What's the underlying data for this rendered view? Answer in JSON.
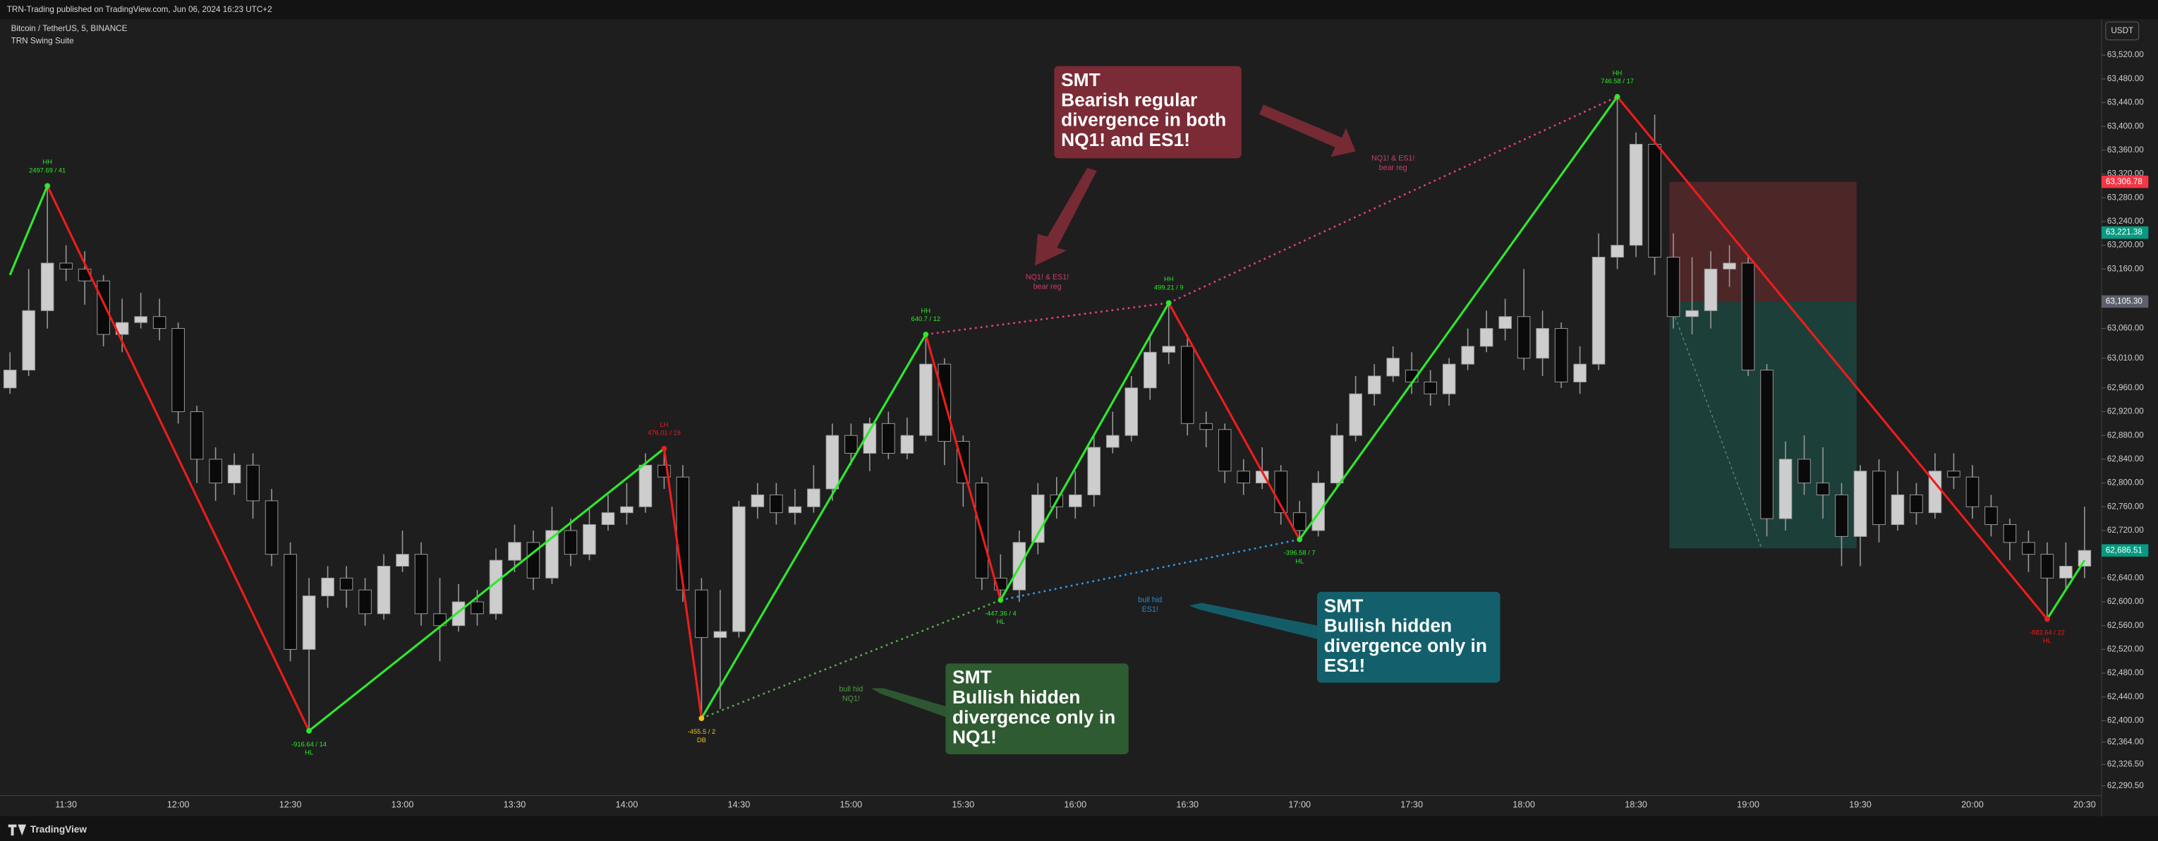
{
  "header": {
    "publisher": "TRN-Trading published on TradingView.com, Jun 06, 2024 16:23 UTC+2",
    "symbol": "Bitcoin / TetherUS, 5, BINANCE",
    "indicator": "TRN Swing Suite",
    "currency": "USDT",
    "brand": "TradingView"
  },
  "chart_data": {
    "type": "candlestick",
    "categories": [
      null,
      null,
      null,
      "11:30",
      null,
      null,
      null,
      null,
      null,
      "12:00",
      null,
      null,
      null,
      null,
      null,
      "12:30",
      null,
      null,
      null,
      null,
      null,
      "13:00",
      null,
      null,
      null,
      null,
      null,
      "13:30",
      null,
      null,
      null,
      null,
      null,
      "14:00",
      null,
      null,
      null,
      null,
      null,
      "14:30",
      null,
      null,
      null,
      null,
      null,
      "15:00",
      null,
      null,
      null,
      null,
      null,
      "15:30",
      null,
      null,
      null,
      null,
      null,
      "16:00",
      null,
      null,
      null,
      null,
      null,
      "16:30",
      null,
      null,
      null,
      null,
      null,
      "17:00",
      null,
      null,
      null,
      null,
      null,
      "17:30",
      null,
      null,
      null,
      null,
      null,
      "18:00",
      null,
      null,
      null,
      null,
      null,
      "18:30",
      null,
      null,
      null,
      null,
      null,
      "19:00",
      null,
      null,
      null,
      null,
      null,
      "19:30",
      null,
      null,
      null,
      null,
      null,
      "20:00",
      null,
      null,
      null,
      null,
      null,
      "20:30"
    ],
    "open": [
      62960,
      62990,
      63090,
      63170,
      63160,
      63140,
      63050,
      63070,
      63080,
      63060,
      62920,
      62840,
      62800,
      62830,
      62770,
      62680,
      62520,
      62610,
      62640,
      62620,
      62580,
      62660,
      62680,
      62580,
      62560,
      62600,
      62580,
      62670,
      62700,
      62640,
      62720,
      62680,
      62730,
      62750,
      62760,
      62830,
      62810,
      62620,
      62540,
      62550,
      62760,
      62780,
      62750,
      62760,
      62790,
      62880,
      62850,
      62900,
      62850,
      62880,
      63000,
      62870,
      62800,
      62640,
      62620,
      62700,
      62780,
      62760,
      62780,
      62860,
      62880,
      62960,
      63020,
      63030,
      62900,
      62890,
      62820,
      62800,
      62820,
      62750,
      62720,
      62800,
      62880,
      62950,
      62980,
      62990,
      62970,
      62950,
      63000,
      63030,
      63060,
      63080,
      63010,
      63060,
      62970,
      63000,
      63180,
      63200,
      63370,
      63180,
      63080,
      63090,
      63160,
      63170,
      62990,
      62740,
      62840,
      62800,
      62780,
      62710,
      62820,
      62730,
      62780,
      62750,
      62820,
      62810,
      62760,
      62730,
      62700,
      62680,
      62640,
      62660
    ],
    "high": [
      63020,
      63160,
      63300,
      63200,
      63190,
      63150,
      63110,
      63120,
      63110,
      63070,
      62930,
      62860,
      62850,
      62850,
      62790,
      62700,
      62640,
      62660,
      62660,
      62640,
      62680,
      62720,
      62700,
      62640,
      62630,
      62620,
      62690,
      62730,
      62720,
      62760,
      62740,
      62760,
      62780,
      62800,
      62850,
      62858,
      62830,
      62640,
      62620,
      62770,
      62800,
      62800,
      62790,
      62830,
      62900,
      62900,
      62910,
      62920,
      62910,
      63050,
      63010,
      62880,
      62810,
      62680,
      62720,
      62800,
      62810,
      62820,
      62880,
      62920,
      62980,
      63050,
      63103,
      63050,
      62920,
      62900,
      62840,
      62860,
      62830,
      62770,
      62820,
      62900,
      62980,
      63000,
      63030,
      63020,
      62990,
      63010,
      63060,
      63090,
      63110,
      63160,
      63090,
      63070,
      63030,
      63220,
      63450,
      63390,
      63420,
      63220,
      63180,
      63190,
      63200,
      63184,
      63000,
      62870,
      62880,
      62860,
      62800,
      62830,
      62840,
      62820,
      62800,
      62850,
      62850,
      62830,
      62780,
      62740,
      62720,
      62700,
      62700,
      62760
    ],
    "low": [
      62950,
      62980,
      63060,
      63140,
      63100,
      63030,
      63020,
      63060,
      63040,
      62900,
      62800,
      62770,
      62780,
      62740,
      62660,
      62500,
      62383,
      62590,
      62590,
      62560,
      62570,
      62650,
      62560,
      62500,
      62550,
      62560,
      62570,
      62650,
      62620,
      62630,
      62660,
      62670,
      62720,
      62730,
      62750,
      62790,
      62600,
      62404,
      62420,
      62540,
      62740,
      62730,
      62730,
      62750,
      62770,
      62830,
      62820,
      62840,
      62840,
      62870,
      62830,
      62760,
      62620,
      62603,
      62600,
      62680,
      62740,
      62740,
      62760,
      62850,
      62870,
      62940,
      63000,
      62880,
      62860,
      62800,
      62780,
      62790,
      62730,
      62705,
      62710,
      62790,
      62870,
      62930,
      62970,
      62950,
      62930,
      62930,
      62990,
      63020,
      63040,
      62990,
      62980,
      62960,
      62950,
      62990,
      63160,
      63180,
      63150,
      63060,
      63050,
      63060,
      63130,
      62980,
      62710,
      62720,
      62780,
      62740,
      62660,
      62660,
      62700,
      62720,
      62730,
      62740,
      62790,
      62740,
      62710,
      62670,
      62650,
      62571,
      62620,
      62640
    ],
    "close": [
      62990,
      63090,
      63170,
      63160,
      63140,
      63050,
      63070,
      63080,
      63060,
      62920,
      62840,
      62800,
      62830,
      62770,
      62680,
      62520,
      62610,
      62640,
      62620,
      62580,
      62660,
      62680,
      62580,
      62560,
      62600,
      62580,
      62670,
      62700,
      62640,
      62720,
      62680,
      62730,
      62750,
      62760,
      62830,
      62810,
      62620,
      62540,
      62550,
      62760,
      62780,
      62750,
      62760,
      62790,
      62880,
      62850,
      62900,
      62850,
      62880,
      63000,
      62870,
      62800,
      62640,
      62620,
      62700,
      62780,
      62760,
      62780,
      62860,
      62880,
      62960,
      63020,
      63030,
      62900,
      62890,
      62820,
      62800,
      62820,
      62750,
      62720,
      62800,
      62880,
      62950,
      62980,
      63010,
      62970,
      62950,
      63000,
      63030,
      63060,
      63080,
      63010,
      63060,
      62970,
      63000,
      63180,
      63200,
      63370,
      63180,
      63080,
      63090,
      63160,
      63170,
      62990,
      62740,
      62840,
      62800,
      62780,
      62710,
      62820,
      62730,
      62780,
      62750,
      62820,
      62810,
      62760,
      62730,
      62700,
      62680,
      62640,
      62660,
      62686.51
    ],
    "up_color": "#cdcdcd",
    "down_color": "#0a0a0a",
    "wick_color": "#9a9a9a",
    "ylim": [
      62274,
      63578
    ],
    "yticks": [
      {
        "value": 63520,
        "label": "63,520.00"
      },
      {
        "value": 63480,
        "label": "63,480.00"
      },
      {
        "value": 63440,
        "label": "63,440.00"
      },
      {
        "value": 63400,
        "label": "63,400.00"
      },
      {
        "value": 63360,
        "label": "63,360.00"
      },
      {
        "value": 63320,
        "label": "63,320.00"
      },
      {
        "value": 63280,
        "label": "63,280.00"
      },
      {
        "value": 63240,
        "label": "63,240.00"
      },
      {
        "value": 63200,
        "label": "63,200.00"
      },
      {
        "value": 63160,
        "label": "63,160.00"
      },
      {
        "value": 63060,
        "label": "63,060.00"
      },
      {
        "value": 63010,
        "label": "63,010.00"
      },
      {
        "value": 62960,
        "label": "62,960.00"
      },
      {
        "value": 62920,
        "label": "62,920.00"
      },
      {
        "value": 62880,
        "label": "62,880.00"
      },
      {
        "value": 62840,
        "label": "62,840.00"
      },
      {
        "value": 62800,
        "label": "62,800.00"
      },
      {
        "value": 62760,
        "label": "62,760.00"
      },
      {
        "value": 62720,
        "label": "62,720.00"
      },
      {
        "value": 62640,
        "label": "62,640.00"
      },
      {
        "value": 62600,
        "label": "62,600.00"
      },
      {
        "value": 62560,
        "label": "62,560.00"
      },
      {
        "value": 62520,
        "label": "62,520.00"
      },
      {
        "value": 62480,
        "label": "62,480.00"
      },
      {
        "value": 62440,
        "label": "62,440.00"
      },
      {
        "value": 62400,
        "label": "62,400.00"
      },
      {
        "value": 62364,
        "label": "62,364.00"
      },
      {
        "value": 62326.5,
        "label": "62,326.50"
      },
      {
        "value": 62290.5,
        "label": "62,290.50"
      }
    ],
    "grid": false,
    "price_labels": [
      {
        "value": 63306.78,
        "label": "63,306.78",
        "color": "#f23645"
      },
      {
        "value": 63221.38,
        "label": "63,221.38",
        "color": "#089981"
      },
      {
        "value": 63105.3,
        "label": "63,105.30",
        "color": "#5d606b"
      },
      {
        "value": 62686.51,
        "label": "62,686.51",
        "color": "#089981"
      }
    ],
    "position": {
      "target": 62690
    },
    "up_color_zigzag": "#2ee82e",
    "down_color_zigzag": "#ee1c1c",
    "pivots": [
      {
        "index": 0,
        "price": 63150
      },
      {
        "index": 2,
        "price": 63300,
        "type": "HH",
        "text": "2497.69 / 41",
        "color": "#2ee82e"
      },
      {
        "index": 16,
        "price": 62383,
        "type": "HL",
        "text": "-916.64 / 14",
        "color": "#2ee82e"
      },
      {
        "index": 35,
        "price": 62858,
        "type": "LH",
        "text": "476.01 / 19",
        "color": "#ee1c1c"
      },
      {
        "index": 37,
        "price": 62404,
        "type": "DB",
        "text": "-455.5 / 2",
        "color": "#f0c020"
      },
      {
        "index": 49,
        "price": 63050,
        "type": "HH",
        "text": "640.7 / 12",
        "color": "#2ee82e"
      },
      {
        "index": 53,
        "price": 62603,
        "type": "HL",
        "text": "-447.36 / 4",
        "color": "#2ee82e"
      },
      {
        "index": 62,
        "price": 63103,
        "type": "HH",
        "text": "499.21 / 9",
        "color": "#2ee82e"
      },
      {
        "index": 69,
        "price": 62705,
        "type": "HL",
        "text": "-396.58 / 7",
        "color": "#2ee82e"
      },
      {
        "index": 86,
        "price": 63450,
        "type": "HH",
        "text": "746.58 / 17",
        "color": "#2ee82e"
      },
      {
        "index": 109,
        "price": 62571,
        "type": "HL",
        "text": "-882.64 / 22",
        "color": "#ee1c1c"
      },
      {
        "index": 111,
        "price": 62670
      }
    ],
    "divergences": [
      {
        "from": 5,
        "to": 7,
        "color": "#e8407f",
        "label": [
          "NQ1! & ES1!",
          "bear reg"
        ]
      },
      {
        "from": 7,
        "to": 9,
        "color": "#e8407f",
        "label": [
          "NQ1! & ES1!",
          "bear reg"
        ]
      },
      {
        "from": 4,
        "to": 6,
        "color": "#56b04a",
        "label": [
          "bull hid",
          "NQ1!"
        ]
      },
      {
        "from": 6,
        "to": 8,
        "color": "#2a9df4",
        "label": [
          "bull hid",
          "ES1!"
        ]
      }
    ],
    "callouts": [
      {
        "title": "SMT",
        "lines": [
          "Bearish regular",
          "divergence in both",
          "NQ1! and ES1!"
        ],
        "color": "#7b2b36"
      },
      {
        "title": "SMT",
        "lines": [
          "Bullish hidden",
          "divergence only in",
          "NQ1!"
        ],
        "color": "#2e5b31"
      },
      {
        "title": "SMT",
        "lines": [
          "Bullish hidden",
          "divergence only in",
          "ES1!"
        ],
        "color": "#13606c"
      }
    ]
  }
}
